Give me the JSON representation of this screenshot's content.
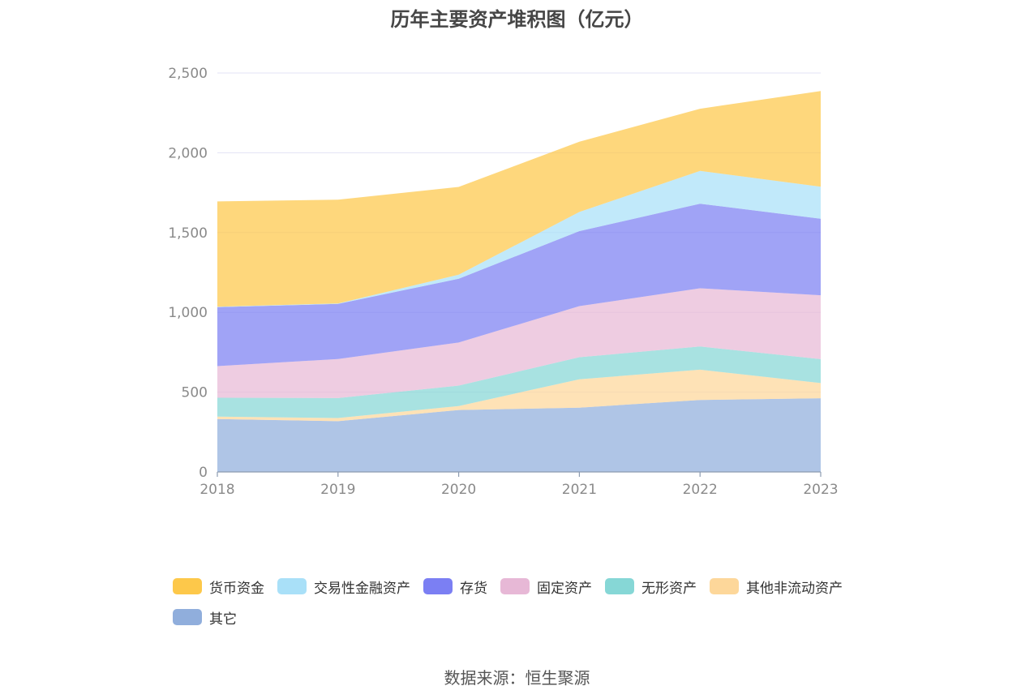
{
  "chart_data": {
    "type": "area",
    "stacked": true,
    "title": "历年主要资产堆积图（亿元）",
    "x": [
      "2018",
      "2019",
      "2020",
      "2021",
      "2022",
      "2023"
    ],
    "ylim": [
      0,
      2500
    ],
    "yticks": [
      0,
      500,
      1000,
      1500,
      2000,
      2500
    ],
    "ytick_labels": [
      "0",
      "500",
      "1,000",
      "1,500",
      "2,000",
      "2,500"
    ],
    "grid": true,
    "series": [
      {
        "name": "其它",
        "color": "#90aedc",
        "values": [
          332,
          318,
          388,
          403,
          451,
          462
        ]
      },
      {
        "name": "其他非流动资产",
        "color": "#fdd79a",
        "values": [
          15,
          20,
          25,
          178,
          190,
          95
        ]
      },
      {
        "name": "无形资产",
        "color": "#86d7d6",
        "values": [
          118,
          125,
          128,
          138,
          145,
          150
        ]
      },
      {
        "name": "固定资产",
        "color": "#e7b8d6",
        "values": [
          198,
          245,
          270,
          320,
          365,
          400
        ]
      },
      {
        "name": "存货",
        "color": "#7b7ff3",
        "values": [
          370,
          345,
          400,
          470,
          530,
          480
        ]
      },
      {
        "name": "交易性金融资产",
        "color": "#a9e0f8",
        "values": [
          2,
          3,
          25,
          120,
          205,
          200
        ]
      },
      {
        "name": "货币资金",
        "color": "#fdc84a",
        "values": [
          660,
          650,
          550,
          440,
          390,
          600
        ]
      }
    ],
    "legend_position": "bottom"
  },
  "legend_order": [
    "货币资金",
    "交易性金融资产",
    "存货",
    "固定资产",
    "无形资产",
    "其他非流动资产",
    "其它"
  ],
  "source": "数据来源：恒生聚源"
}
